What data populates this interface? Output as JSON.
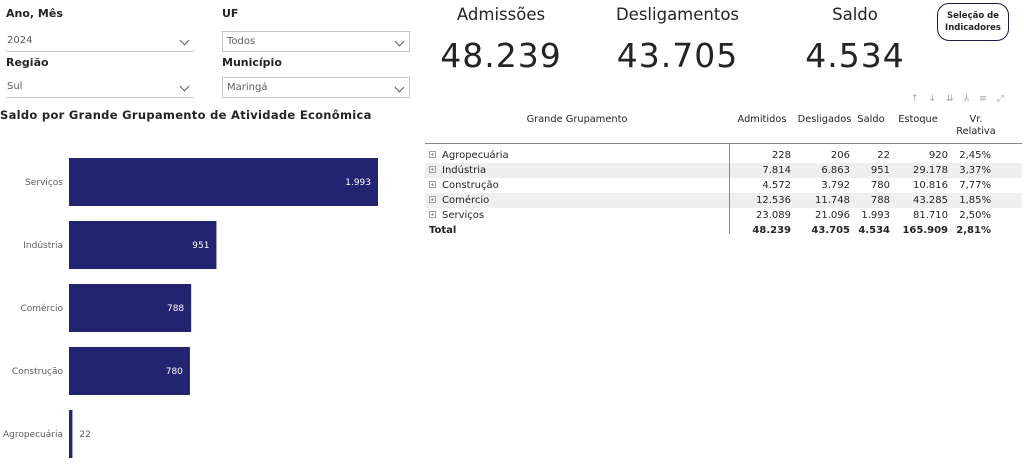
{
  "filters": {
    "ano_mes": {
      "label": "Ano, Mês",
      "value": "2024"
    },
    "uf": {
      "label": "UF",
      "value": "Todos"
    },
    "regiao": {
      "label": "Região",
      "value": "Sul"
    },
    "municipio": {
      "label": "Município",
      "value": "Maringá"
    }
  },
  "kpis": {
    "admissoes": {
      "label": "Admissões",
      "value": "48.239"
    },
    "desligamentos": {
      "label": "Desligamentos",
      "value": "43.705"
    },
    "saldo": {
      "label": "Saldo",
      "value": "4.534"
    }
  },
  "indicator_button": {
    "line1": "Seleção de",
    "line2": "Indicadores"
  },
  "visual_header_icons": [
    "arrow-up-icon",
    "arrow-down-icon",
    "double-arrow-down-icon",
    "expand-hierarchy-icon",
    "filter-icon",
    "focus-mode-icon"
  ],
  "chart_data": {
    "type": "bar",
    "orientation": "horizontal",
    "title": "Saldo por Grande Grupamento de Atividade Econômica",
    "categories": [
      "Serviços",
      "Indústria",
      "Comércio",
      "Construção",
      "Agropecuária"
    ],
    "values": [
      1993,
      951,
      788,
      780,
      22
    ],
    "data_labels": [
      "1.993",
      "951",
      "788",
      "780",
      "22"
    ],
    "xlim": [
      0,
      1993
    ],
    "bar_color": "#232471",
    "grid": false
  },
  "matrix": {
    "headers": {
      "grupamento": "Grande Grupamento",
      "admitidos": "Admitidos",
      "desligados": "Desligados",
      "saldo": "Saldo",
      "estoque": "Estoque",
      "variacao_l1": "Vr.",
      "variacao_l2": "Relativa"
    },
    "rows": [
      {
        "name": "Agropecuária",
        "admitidos": "228",
        "desligados": "206",
        "saldo": "22",
        "estoque": "920",
        "variacao": "2,45%"
      },
      {
        "name": "Indústria",
        "admitidos": "7.814",
        "desligados": "6.863",
        "saldo": "951",
        "estoque": "29.178",
        "variacao": "3,37%"
      },
      {
        "name": "Construção",
        "admitidos": "4.572",
        "desligados": "3.792",
        "saldo": "780",
        "estoque": "10.816",
        "variacao": "7,77%"
      },
      {
        "name": "Comércio",
        "admitidos": "12.536",
        "desligados": "11.748",
        "saldo": "788",
        "estoque": "43.285",
        "variacao": "1,85%"
      },
      {
        "name": "Serviços",
        "admitidos": "23.089",
        "desligados": "21.096",
        "saldo": "1.993",
        "estoque": "81.710",
        "variacao": "2,50%"
      }
    ],
    "total": {
      "name": "Total",
      "admitidos": "48.239",
      "desligados": "43.705",
      "saldo": "4.534",
      "estoque": "165.909",
      "variacao": "2,81%"
    }
  }
}
